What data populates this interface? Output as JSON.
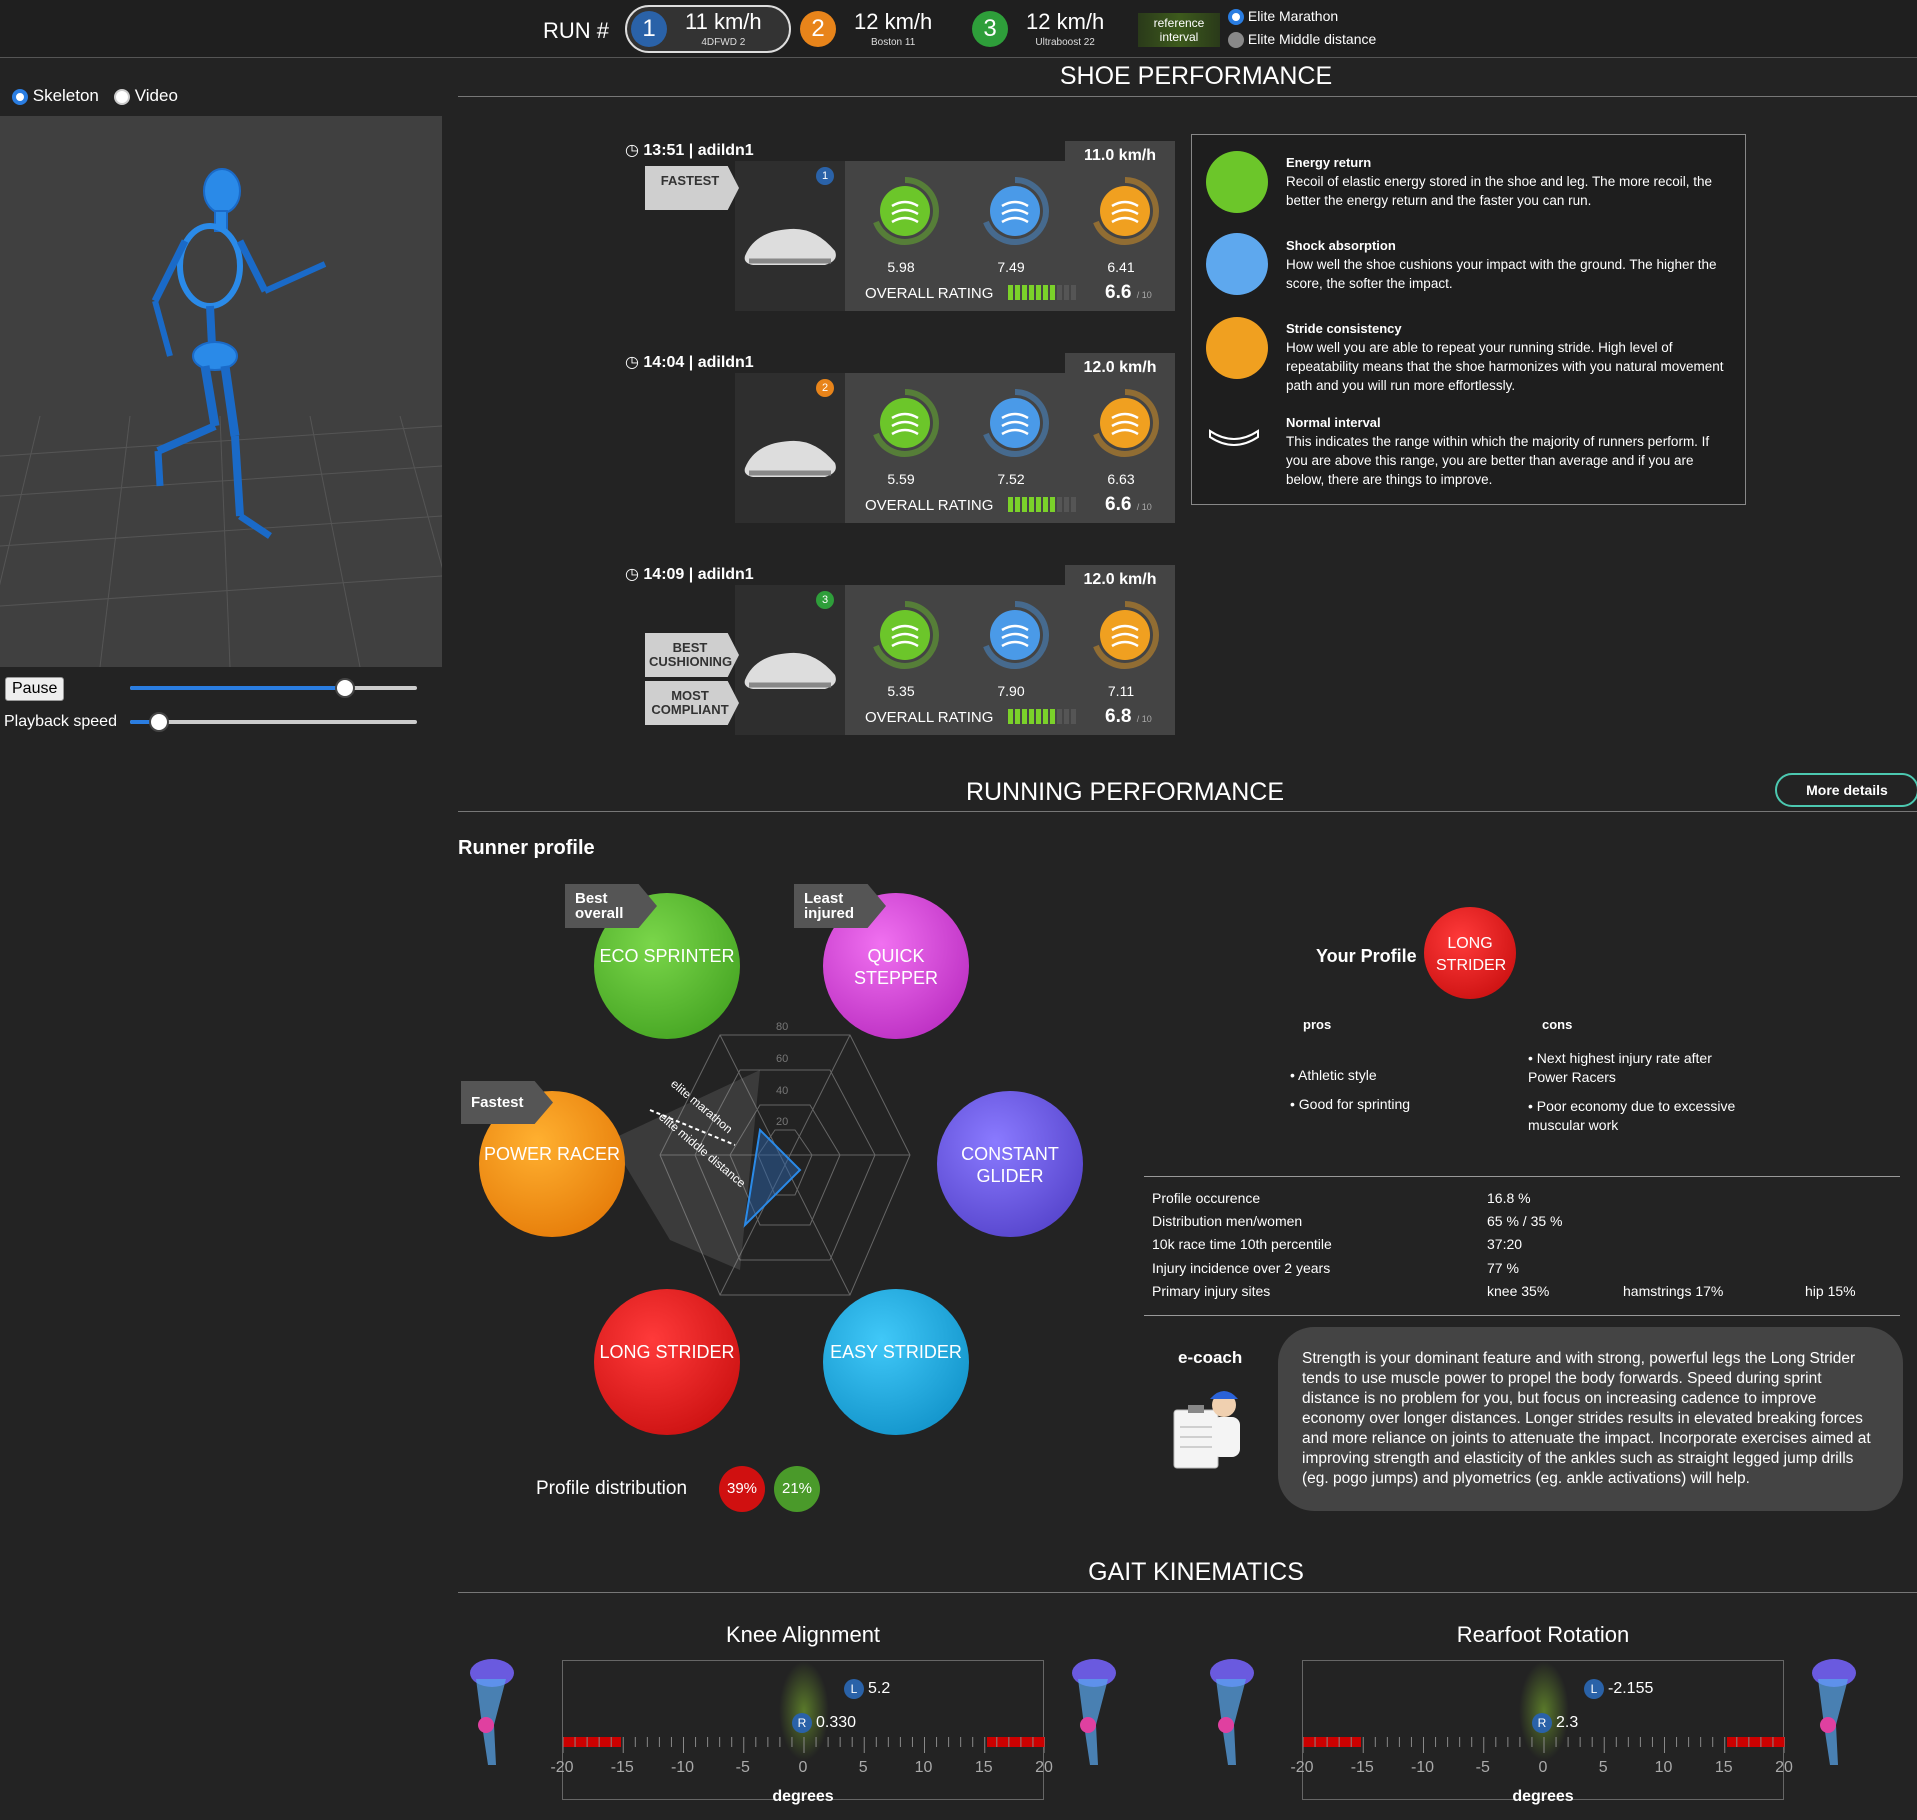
{
  "header": {
    "run_label": "RUN #",
    "runs": [
      {
        "num": "1",
        "speed": "11 km/h",
        "shoe": "4DFWD 2",
        "color": "#2a62a8"
      },
      {
        "num": "2",
        "speed": "12 km/h",
        "shoe": "Boston 11",
        "color": "#e8841a"
      },
      {
        "num": "3",
        "speed": "12 km/h",
        "shoe": "Ultraboost 22",
        "color": "#2e9e3a"
      }
    ],
    "reference_interval": "reference interval",
    "ref_options": [
      "Elite Marathon",
      "Elite Middle distance"
    ]
  },
  "left": {
    "view_options": [
      "Skeleton",
      "Video"
    ],
    "pause": "Pause",
    "playback_speed": "Playback speed",
    "position": 0.75,
    "speed": 0.1
  },
  "shoe_performance": {
    "title": "SHOE PERFORMANCE",
    "overall_label": "OVERALL RATING",
    "out_of": "/ 10",
    "cards": [
      {
        "time": "13:51 | adildn1",
        "speed": "11.0 km/h",
        "badge": "1",
        "energy": "5.98",
        "shock": "7.49",
        "stride": "6.41",
        "overall": "6.6",
        "tags": [
          "FASTEST"
        ]
      },
      {
        "time": "14:04 | adildn1",
        "speed": "12.0 km/h",
        "badge": "2",
        "energy": "5.59",
        "shock": "7.52",
        "stride": "6.63",
        "overall": "6.6",
        "tags": []
      },
      {
        "time": "14:09 | adildn1",
        "speed": "12.0 km/h",
        "badge": "3",
        "energy": "5.35",
        "shock": "7.90",
        "stride": "7.11",
        "overall": "6.8",
        "tags": [
          "BEST CUSHIONING",
          "MOST COMPLIANT"
        ]
      }
    ],
    "legend": [
      {
        "title": "Energy return",
        "text": "Recoil of elastic energy stored in the shoe and leg. The more recoil, the better the energy return and the faster you can run."
      },
      {
        "title": "Shock absorption",
        "text": "How well the shoe cushions your impact with the ground. The higher the score, the softer the impact."
      },
      {
        "title": "Stride consistency",
        "text": "How well you are able to repeat your running stride. High level of repeatability means that the shoe harmonizes with you natural movement path and you will run more effortlessly."
      },
      {
        "title": "Normal interval",
        "text": "This indicates the range within which the majority of runners perform. If you are above this range, you are better than average and if you are below, there are things to improve."
      }
    ]
  },
  "running_performance": {
    "title": "RUNNING PERFORMANCE",
    "more_details": "More details",
    "runner_profile": "Runner profile",
    "profiles": [
      {
        "name": "ECO SPRINTER",
        "tag": "Best overall"
      },
      {
        "name": "QUICK STEPPER",
        "tag": "Least injured"
      },
      {
        "name": "POWER RACER",
        "tag": "Fastest"
      },
      {
        "name": "CONSTANT GLIDER",
        "tag": ""
      },
      {
        "name": "LONG STRIDER",
        "tag": ""
      },
      {
        "name": "EASY STRIDER",
        "tag": ""
      }
    ],
    "radar_ticks": [
      "80",
      "60",
      "40",
      "20"
    ],
    "radar_legend": [
      "elite marathon",
      "elite middle distance"
    ],
    "profile_distribution": "Profile distribution",
    "distribution": [
      "39%",
      "21%"
    ],
    "your_profile_label": "Your Profile",
    "your_profile": "LONG STRIDER",
    "pros_label": "pros",
    "cons_label": "cons",
    "pros": [
      "Athletic style",
      "Good for sprinting"
    ],
    "cons": [
      "Next highest injury rate after Power Racers",
      "Poor economy due to excessive muscular work"
    ],
    "stats": [
      {
        "label": "Profile occurence",
        "value": "16.8 %"
      },
      {
        "label": "Distribution men/women",
        "value": "65 % / 35 %"
      },
      {
        "label": "10k race time 10th percentile",
        "value": "37:20"
      },
      {
        "label": "Injury incidence over 2 years",
        "value": "77 %"
      },
      {
        "label": "Primary injury sites",
        "value": "knee 35%"
      }
    ],
    "injury_extra": [
      "hamstrings 17%",
      "hip 15%"
    ],
    "ecoach_label": "e-coach",
    "ecoach_text": "Strength is your dominant feature and with strong, powerful legs the Long Strider tends to use muscle power to propel the body forwards. Speed during sprint distance is no problem for you, but focus on increasing cadence to improve economy over longer distances. Longer strides results in elevated breaking forces and more reliance on joints to attenuate the impact. Incorporate exercises aimed at improving strength and elasticity of the ankles such as straight legged jump drills (eg. pogo jumps) and plyometrics (eg. ankle activations) will help."
  },
  "gait": {
    "title": "GAIT KINEMATICS",
    "unit": "degrees",
    "ticks": [
      "-20",
      "-15",
      "-10",
      "-5",
      "0",
      "5",
      "10",
      "15",
      "20"
    ],
    "charts": [
      {
        "title": "Knee Alignment",
        "L": "5.2",
        "R": "0.330"
      },
      {
        "title": "Rearfoot Rotation",
        "L": "-2.155",
        "R": "2.3"
      }
    ]
  },
  "colors": {
    "energy": "#6cc62a",
    "shock": "#4a9ae8",
    "stride": "#f0a020",
    "eco": "#55b52a",
    "quick": "#d640d6",
    "power": "#f0900a",
    "glider": "#6a5ad8",
    "long": "#e01818",
    "easy": "#18a8e0"
  }
}
